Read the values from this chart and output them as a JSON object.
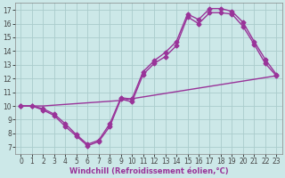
{
  "xlabel": "Windchill (Refroidissement éolien,°C)",
  "bg_color": "#cce8e8",
  "line_color": "#993399",
  "xlim": [
    -0.5,
    23.5
  ],
  "ylim": [
    6.5,
    17.5
  ],
  "xticks": [
    0,
    1,
    2,
    3,
    4,
    5,
    6,
    7,
    8,
    9,
    10,
    11,
    12,
    13,
    14,
    15,
    16,
    17,
    18,
    19,
    20,
    21,
    22,
    23
  ],
  "yticks": [
    7,
    8,
    9,
    10,
    11,
    12,
    13,
    14,
    15,
    16,
    17
  ],
  "grid_color": "#aacccc",
  "line1_x": [
    0,
    2,
    9,
    23
  ],
  "line1_y": [
    10.0,
    10.0,
    10.4,
    12.2
  ],
  "line2_x": [
    0,
    1,
    2,
    3,
    4,
    5,
    6,
    7,
    8,
    9,
    10,
    11,
    12,
    13,
    14,
    15,
    16,
    17,
    18,
    19,
    20,
    21,
    22,
    23
  ],
  "line2_y": [
    10.0,
    10.0,
    9.7,
    9.3,
    8.5,
    7.8,
    7.1,
    7.4,
    8.5,
    10.5,
    10.3,
    12.3,
    13.1,
    13.6,
    14.4,
    16.5,
    16.0,
    16.8,
    16.8,
    16.7,
    15.8,
    14.5,
    13.1,
    12.2
  ],
  "line3_x": [
    0,
    1,
    2,
    3,
    4,
    5,
    6,
    7,
    8,
    9,
    10,
    11,
    12,
    13,
    14,
    15,
    16,
    17,
    18,
    19,
    20,
    21,
    22,
    23
  ],
  "line3_y": [
    10.0,
    10.0,
    9.8,
    9.4,
    8.7,
    7.9,
    7.2,
    7.5,
    8.7,
    10.6,
    10.5,
    12.5,
    13.3,
    13.9,
    14.7,
    16.7,
    16.3,
    17.1,
    17.1,
    16.9,
    16.1,
    14.7,
    13.4,
    12.3
  ],
  "marker": "D",
  "marker_size": 2.5,
  "line_width": 1.0,
  "tick_fontsize": 5.5,
  "xlabel_fontsize": 6.0
}
